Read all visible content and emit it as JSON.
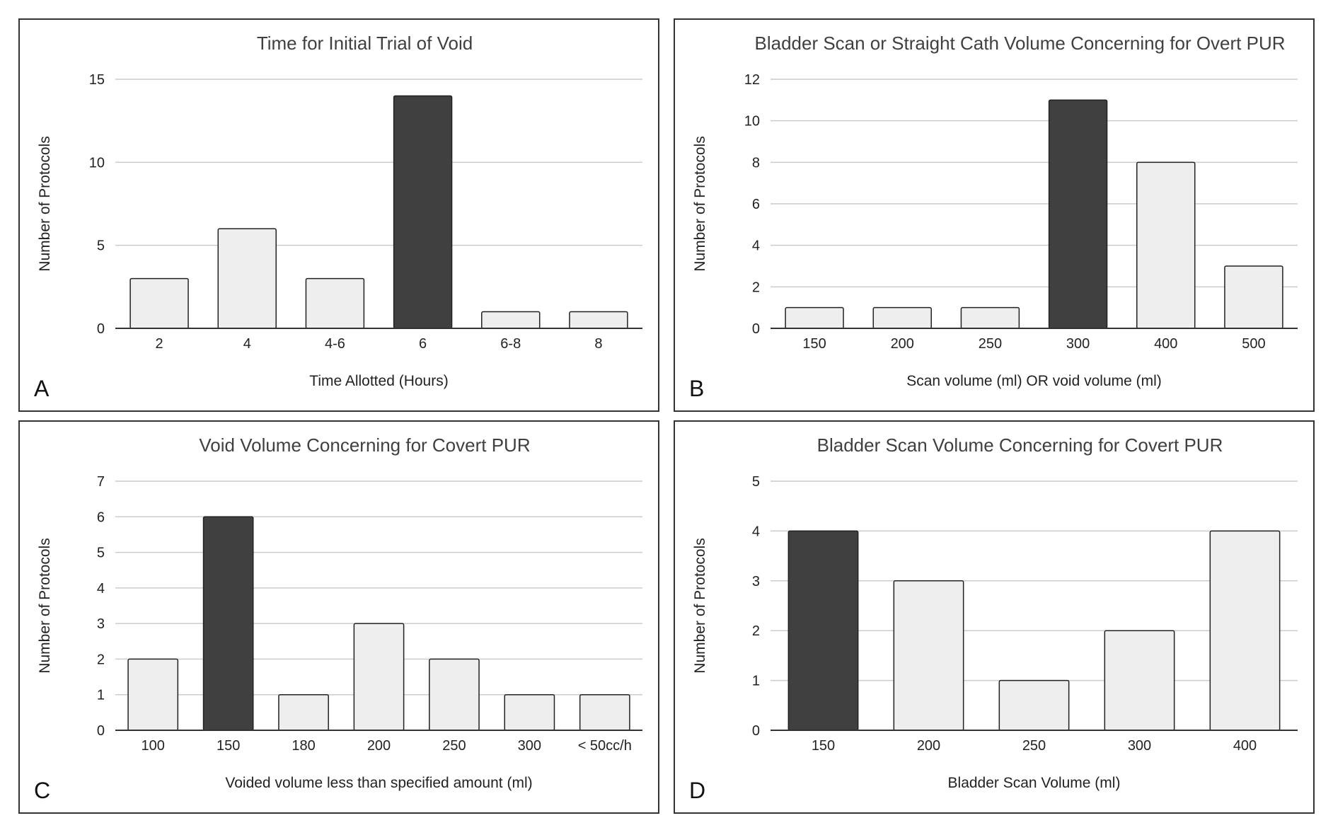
{
  "chart_data": [
    {
      "panel": "A",
      "type": "bar",
      "title": "Time for Initial Trial of Void",
      "xlabel": "Time Allotted (Hours)",
      "ylabel": "Number of Protocols",
      "categories": [
        "2",
        "4",
        "4-6",
        "6",
        "6-8",
        "8"
      ],
      "values": [
        3,
        6,
        3,
        14,
        1,
        1
      ],
      "highlight_index": 3,
      "yticks": [
        0,
        5,
        10,
        15
      ],
      "ylim": [
        0,
        15
      ],
      "grid": true,
      "colors": {
        "bar": "#eeeeee",
        "highlight": "#404040",
        "outline": "#222222"
      }
    },
    {
      "panel": "B",
      "type": "bar",
      "title": "Bladder Scan or Straight Cath Volume Concerning for Overt PUR",
      "xlabel": "Scan volume (ml) OR void volume (ml)",
      "ylabel": "Number of Protocols",
      "categories": [
        "150",
        "200",
        "250",
        "300",
        "400",
        "500"
      ],
      "values": [
        1,
        1,
        1,
        11,
        8,
        3
      ],
      "highlight_index": 3,
      "yticks": [
        0,
        2,
        4,
        6,
        8,
        10,
        12
      ],
      "ylim": [
        0,
        12
      ],
      "grid": true,
      "colors": {
        "bar": "#eeeeee",
        "highlight": "#404040",
        "outline": "#222222"
      }
    },
    {
      "panel": "C",
      "type": "bar",
      "title": "Void Volume Concerning for Covert PUR",
      "xlabel": "Voided volume less than specified amount (ml)",
      "ylabel": "Number of Protocols",
      "categories": [
        "100",
        "150",
        "180",
        "200",
        "250",
        "300",
        "< 50cc/h"
      ],
      "values": [
        2,
        6,
        1,
        3,
        2,
        1,
        1
      ],
      "highlight_index": 1,
      "yticks": [
        0,
        1,
        2,
        3,
        4,
        5,
        6,
        7
      ],
      "ylim": [
        0,
        7
      ],
      "grid": true,
      "colors": {
        "bar": "#eeeeee",
        "highlight": "#404040",
        "outline": "#222222"
      }
    },
    {
      "panel": "D",
      "type": "bar",
      "title": "Bladder Scan Volume Concerning for Covert PUR",
      "xlabel": "Bladder Scan Volume (ml)",
      "ylabel": "Number of Protocols",
      "categories": [
        "150",
        "200",
        "250",
        "300",
        "400"
      ],
      "values": [
        4,
        3,
        1,
        2,
        4
      ],
      "highlight_index": 0,
      "yticks": [
        0,
        1,
        2,
        3,
        4,
        5
      ],
      "ylim": [
        0,
        5
      ],
      "grid": true,
      "colors": {
        "bar": "#eeeeee",
        "highlight": "#404040",
        "outline": "#222222"
      }
    }
  ]
}
